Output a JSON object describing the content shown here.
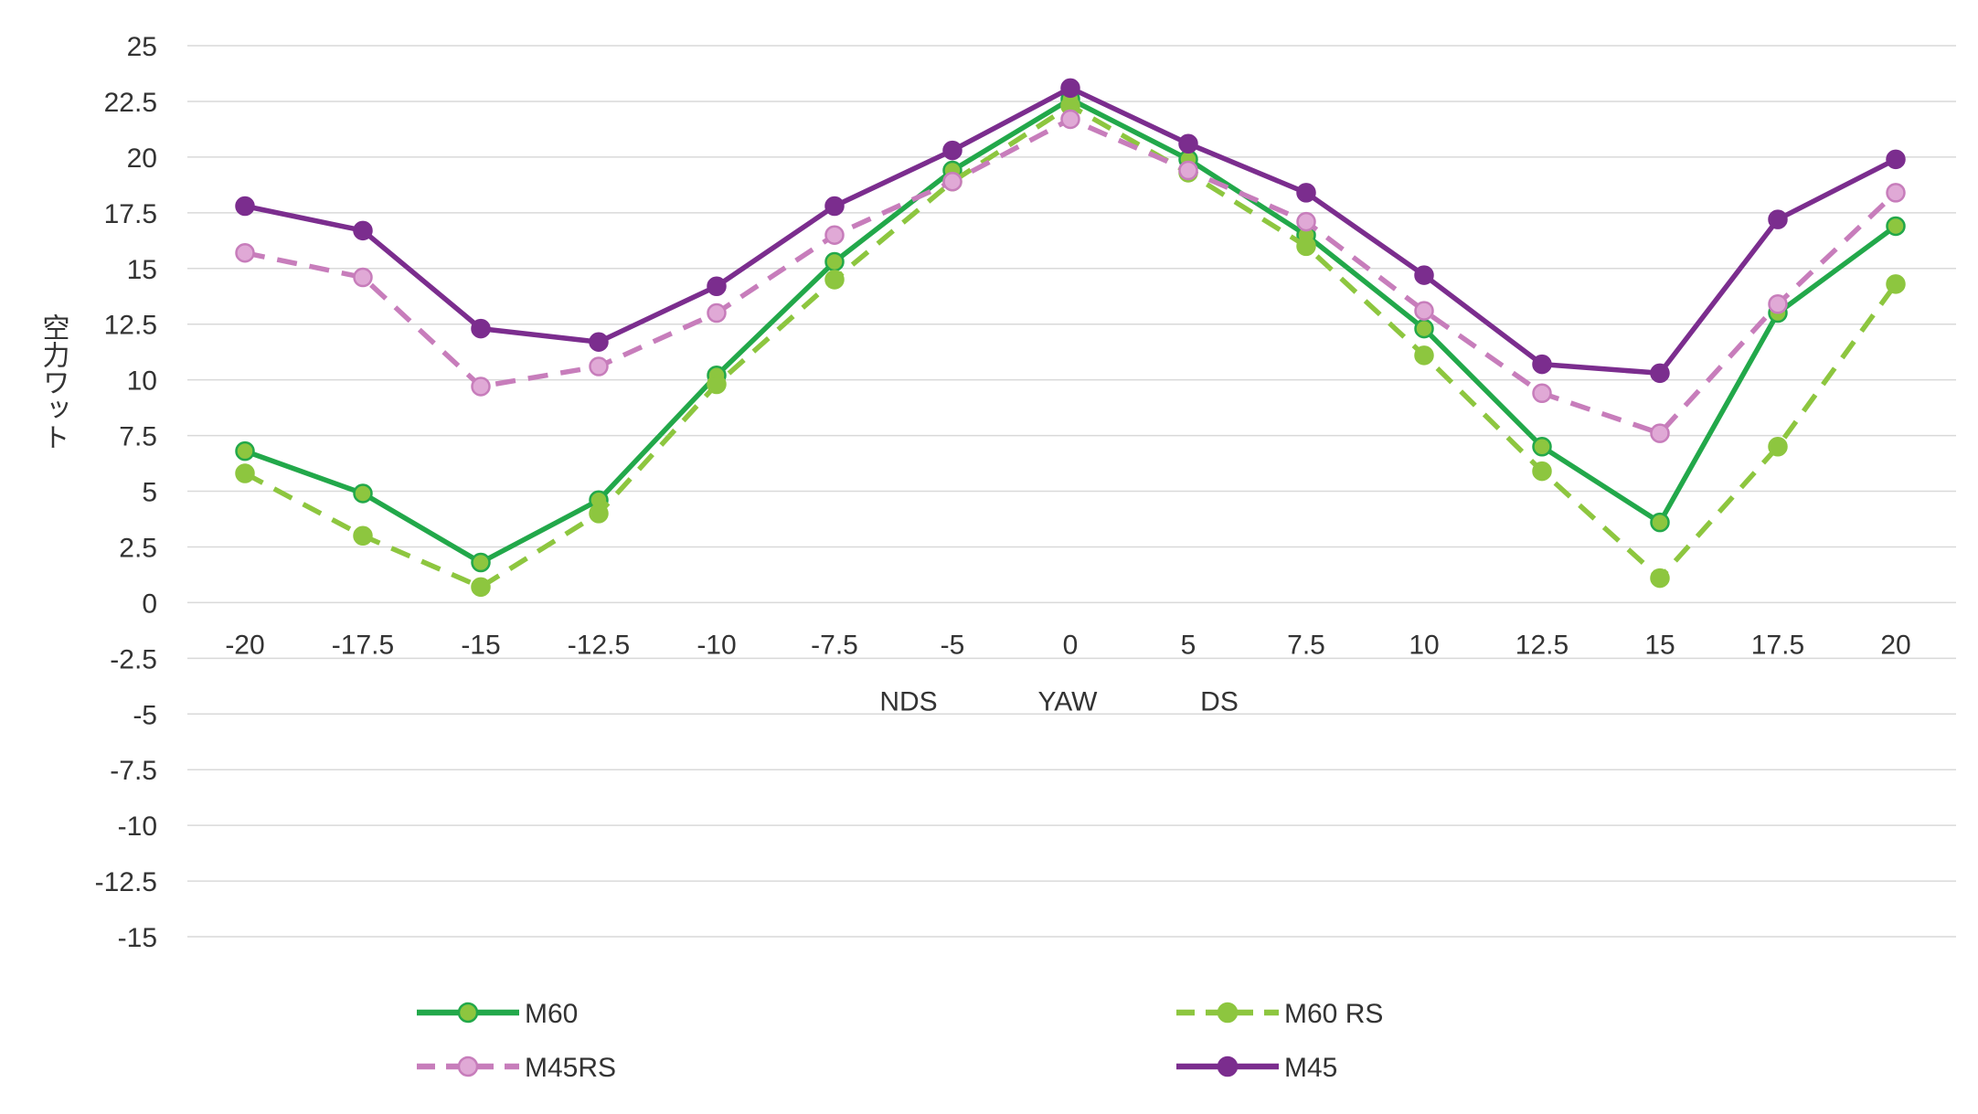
{
  "chart_data": {
    "type": "line",
    "title": "",
    "xlabel": "",
    "ylabel": "空力ワット",
    "x": [
      -20,
      -17.5,
      -15,
      -12.5,
      -10,
      -7.5,
      -5,
      0,
      5,
      7.5,
      10,
      12.5,
      15,
      17.5,
      20
    ],
    "x_tick_labels": [
      "-20",
      "-17.5",
      "-15",
      "-12.5",
      "-10",
      "-7.5",
      "-5",
      "0",
      "5",
      "7.5",
      "10",
      "12.5",
      "15",
      "17.5",
      "20"
    ],
    "y_ticks": [
      25,
      22.5,
      20,
      17.5,
      15,
      12.5,
      10,
      7.5,
      5,
      2.5,
      0,
      -2.5,
      -5,
      -7.5,
      -10,
      -12.5,
      -15
    ],
    "y_tick_labels": [
      "25",
      "22.5",
      "20",
      "17.5",
      "15",
      "12.5",
      "10",
      "7.5",
      "5",
      "2.5",
      "0",
      "-2.5",
      "-5",
      "-7.5",
      "-10",
      "-12.5",
      "-15"
    ],
    "ylim": [
      -15,
      25
    ],
    "grid": true,
    "legend_position": "bottom",
    "annotations": [
      "NDS",
      "YAW",
      "DS"
    ],
    "series": [
      {
        "name": "M60",
        "color": "#22a84a",
        "marker_fill": "#8dc63f",
        "dashed": false,
        "values": [
          6.8,
          4.9,
          1.8,
          4.6,
          10.2,
          15.3,
          19.4,
          22.6,
          19.9,
          16.5,
          12.3,
          7.0,
          3.6,
          13.0,
          16.9
        ]
      },
      {
        "name": "M60 RS",
        "color": "#8dc63f",
        "marker_fill": "#8dc63f",
        "dashed": true,
        "values": [
          5.8,
          3.0,
          0.7,
          4.0,
          9.8,
          14.5,
          18.9,
          22.3,
          19.3,
          16.0,
          11.1,
          5.9,
          1.1,
          7.0,
          14.3
        ]
      },
      {
        "name": "M45RS",
        "color": "#c77dbb",
        "marker_fill": "#e0a9d6",
        "dashed": true,
        "values": [
          15.7,
          14.6,
          9.7,
          10.6,
          13.0,
          16.5,
          18.9,
          21.7,
          19.4,
          17.1,
          13.1,
          9.4,
          7.6,
          13.4,
          18.4
        ]
      },
      {
        "name": "M45",
        "color": "#7b2d8e",
        "marker_fill": "#7b2d8e",
        "dashed": false,
        "values": [
          17.8,
          16.7,
          12.3,
          11.7,
          14.2,
          17.8,
          20.3,
          23.1,
          20.6,
          18.4,
          14.7,
          10.7,
          10.3,
          17.2,
          19.9
        ]
      }
    ],
    "legend": [
      {
        "name": "M60",
        "series": 0
      },
      {
        "name": "M60 RS",
        "series": 1
      },
      {
        "name": "M45RS",
        "series": 2
      },
      {
        "name": "M45",
        "series": 3
      }
    ]
  }
}
